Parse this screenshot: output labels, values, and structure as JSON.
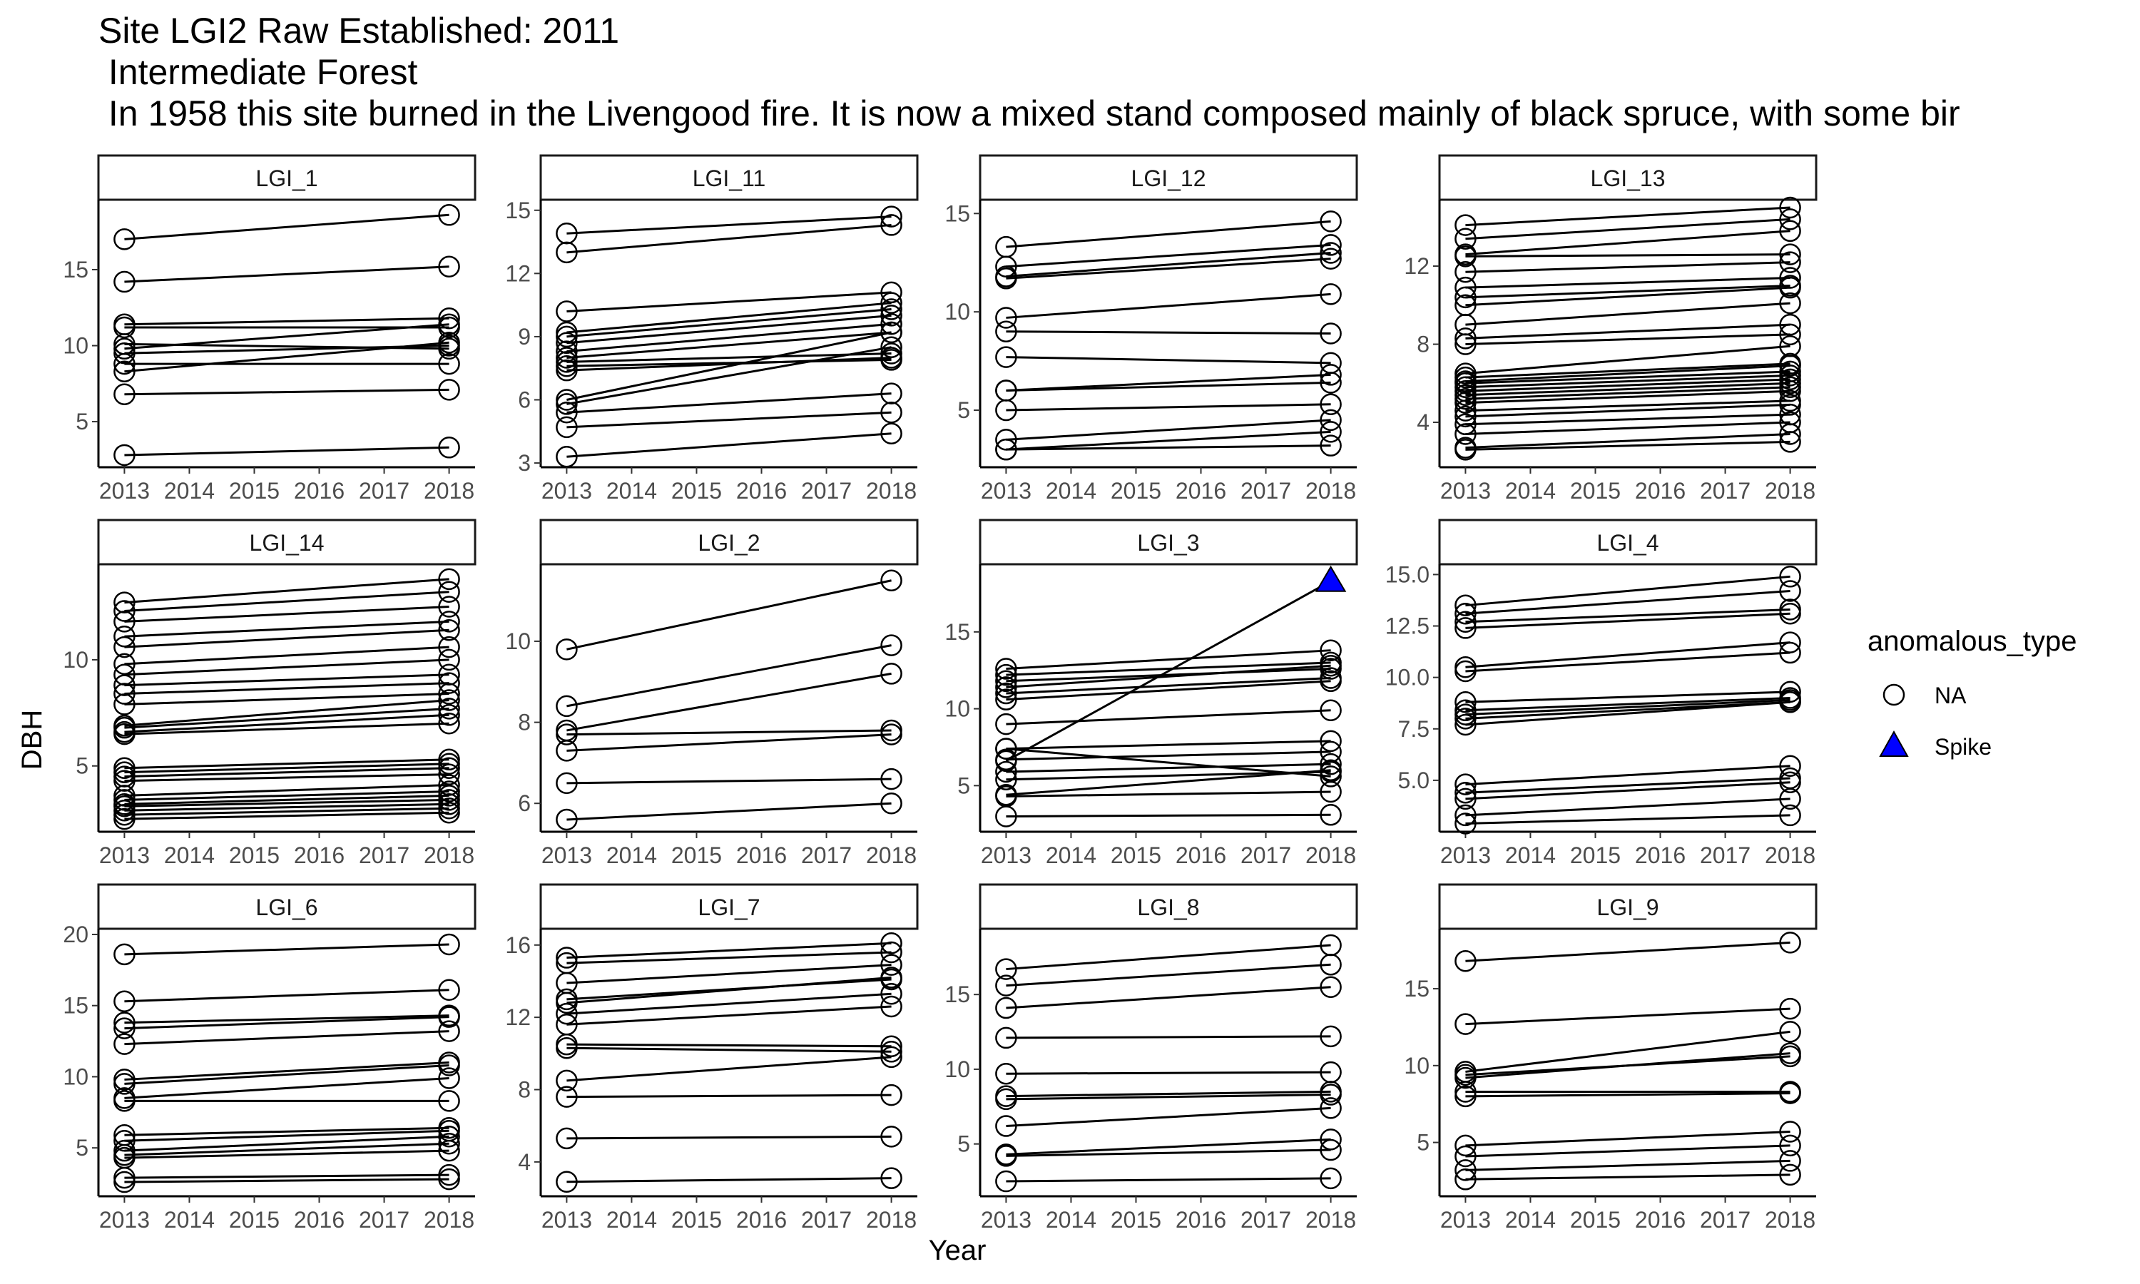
{
  "chart_data": {
    "type": "line",
    "title": "Site LGI2 Raw Established: 2011",
    "subtitle_lines": [
      " Intermediate Forest",
      " In 1958 this site burned in the Livengood fire. It is now a mixed stand composed mainly of black spruce, with some bir"
    ],
    "xlabel": "Year",
    "ylabel": "DBH",
    "x_ticks": [
      2013,
      2014,
      2015,
      2016,
      2017,
      2018
    ],
    "xlim": [
      2012.6,
      2018.4
    ],
    "legend": {
      "title": "anomalous_type",
      "position": "right",
      "entries": [
        {
          "label": "NA",
          "shape": "open-circle"
        },
        {
          "label": "Spike",
          "shape": "triangle",
          "color": "#0000ff"
        }
      ]
    },
    "colors": {
      "line": "#000000",
      "spike": "#0000ff"
    },
    "panels": [
      {
        "name": "LGI_1",
        "ylim": [
          2.0,
          19.6
        ],
        "yticks": [
          5,
          10,
          15
        ],
        "series": [
          [
            17.0,
            18.6
          ],
          [
            14.2,
            15.2
          ],
          [
            11.4,
            11.8
          ],
          [
            11.2,
            11.2
          ],
          [
            10.1,
            9.8
          ],
          [
            9.8,
            11.4
          ],
          [
            9.5,
            10.0
          ],
          [
            8.8,
            8.8
          ],
          [
            8.3,
            10.2
          ],
          [
            6.8,
            7.1
          ],
          [
            2.8,
            3.3
          ]
        ],
        "spikes": []
      },
      {
        "name": "LGI_11",
        "ylim": [
          2.8,
          15.5
        ],
        "yticks": [
          3,
          6,
          9,
          12,
          15
        ],
        "series": [
          [
            13.9,
            14.7
          ],
          [
            13.0,
            14.3
          ],
          [
            10.2,
            11.1
          ],
          [
            9.2,
            10.6
          ],
          [
            9.0,
            10.3
          ],
          [
            8.7,
            10.0
          ],
          [
            8.3,
            9.6
          ],
          [
            8.0,
            9.2
          ],
          [
            7.8,
            8.2
          ],
          [
            7.6,
            7.9
          ],
          [
            7.4,
            8.0
          ],
          [
            6.0,
            9.2
          ],
          [
            5.8,
            8.5
          ],
          [
            5.4,
            6.3
          ],
          [
            4.7,
            5.4
          ],
          [
            3.3,
            4.4
          ]
        ],
        "spikes": []
      },
      {
        "name": "LGI_12",
        "ylim": [
          2.1,
          15.7
        ],
        "yticks": [
          5,
          10,
          15
        ],
        "series": [
          [
            13.3,
            14.6
          ],
          [
            12.3,
            13.4
          ],
          [
            11.8,
            13.0
          ],
          [
            11.7,
            12.7
          ],
          [
            9.7,
            10.9
          ],
          [
            9.0,
            8.9
          ],
          [
            7.7,
            7.4
          ],
          [
            6.0,
            6.8
          ],
          [
            6.0,
            6.4
          ],
          [
            5.0,
            5.3
          ],
          [
            3.5,
            4.5
          ],
          [
            3.0,
            3.2
          ],
          [
            3.0,
            3.9
          ]
        ],
        "spikes": []
      },
      {
        "name": "LGI_13",
        "ylim": [
          1.7,
          15.4
        ],
        "yticks": [
          4,
          8,
          12
        ],
        "series": [
          [
            14.1,
            15.0
          ],
          [
            13.4,
            14.4
          ],
          [
            12.6,
            13.8
          ],
          [
            12.5,
            12.6
          ],
          [
            11.7,
            12.2
          ],
          [
            10.9,
            11.4
          ],
          [
            10.4,
            11.0
          ],
          [
            10.0,
            10.9
          ],
          [
            9.0,
            10.1
          ],
          [
            8.3,
            9.0
          ],
          [
            8.0,
            8.5
          ],
          [
            6.5,
            7.9
          ],
          [
            6.3,
            7.0
          ],
          [
            6.1,
            6.9
          ],
          [
            6.0,
            6.6
          ],
          [
            5.8,
            6.4
          ],
          [
            5.6,
            6.2
          ],
          [
            5.4,
            6.0
          ],
          [
            5.2,
            5.8
          ],
          [
            5.0,
            5.6
          ],
          [
            4.6,
            5.1
          ],
          [
            4.3,
            4.9
          ],
          [
            3.9,
            4.4
          ],
          [
            3.4,
            4.0
          ],
          [
            2.7,
            3.4
          ],
          [
            2.6,
            3.0
          ]
        ],
        "spikes": []
      },
      {
        "name": "LGI_14",
        "ylim": [
          1.9,
          14.5
        ],
        "yticks": [
          5,
          10
        ],
        "series": [
          [
            12.7,
            13.8
          ],
          [
            12.3,
            13.2
          ],
          [
            11.8,
            12.5
          ],
          [
            11.1,
            11.8
          ],
          [
            10.6,
            11.4
          ],
          [
            9.8,
            10.6
          ],
          [
            9.3,
            10.0
          ],
          [
            8.8,
            9.3
          ],
          [
            8.4,
            8.9
          ],
          [
            7.9,
            8.4
          ],
          [
            6.9,
            8.1
          ],
          [
            6.8,
            7.7
          ],
          [
            6.6,
            7.4
          ],
          [
            6.5,
            7.0
          ],
          [
            4.9,
            5.3
          ],
          [
            4.7,
            5.1
          ],
          [
            4.5,
            4.9
          ],
          [
            4.3,
            4.6
          ],
          [
            3.6,
            4.1
          ],
          [
            3.4,
            3.8
          ],
          [
            3.2,
            3.6
          ],
          [
            3.1,
            3.4
          ],
          [
            2.9,
            3.2
          ],
          [
            2.7,
            3.0
          ],
          [
            2.5,
            2.8
          ]
        ],
        "spikes": []
      },
      {
        "name": "LGI_2",
        "ylim": [
          5.3,
          11.9
        ],
        "yticks": [
          6,
          8,
          10
        ],
        "series": [
          [
            9.8,
            11.5
          ],
          [
            8.4,
            9.9
          ],
          [
            7.8,
            9.2
          ],
          [
            7.7,
            7.8
          ],
          [
            7.3,
            7.7
          ],
          [
            6.5,
            6.6
          ],
          [
            5.6,
            6.0
          ]
        ],
        "spikes": []
      },
      {
        "name": "LGI_3",
        "ylim": [
          2.0,
          19.4
        ],
        "yticks": [
          5,
          10,
          15
        ],
        "series": [
          [
            12.6,
            13.8
          ],
          [
            12.2,
            13.0
          ],
          [
            11.8,
            12.6
          ],
          [
            11.4,
            12.8
          ],
          [
            11.0,
            12.0
          ],
          [
            10.6,
            11.8
          ],
          [
            9.0,
            9.9
          ],
          [
            7.4,
            5.6
          ],
          [
            7.4,
            7.9
          ],
          [
            6.7,
            7.2
          ],
          [
            5.9,
            6.4
          ],
          [
            5.4,
            5.9
          ],
          [
            4.4,
            6.0
          ],
          [
            4.3,
            4.6
          ],
          [
            3.0,
            3.1
          ]
        ],
        "spikes": [
          {
            "x": [
              2013,
              2018
            ],
            "y": [
              6.6,
              18.3
            ]
          }
        ]
      },
      {
        "name": "LGI_4",
        "ylim": [
          2.5,
          15.5
        ],
        "yticks": [
          5.0,
          7.5,
          10.0,
          12.5,
          15.0
        ],
        "tick_labels": [
          "5.0",
          "7.5",
          "10.0",
          "12.5",
          "15.0"
        ],
        "series": [
          [
            13.5,
            14.9
          ],
          [
            13.1,
            14.2
          ],
          [
            12.7,
            13.3
          ],
          [
            12.4,
            13.1
          ],
          [
            10.5,
            11.7
          ],
          [
            10.3,
            11.2
          ],
          [
            8.8,
            9.3
          ],
          [
            8.4,
            9.0
          ],
          [
            8.2,
            8.9
          ],
          [
            8.0,
            8.8
          ],
          [
            7.7,
            8.8
          ],
          [
            4.8,
            5.7
          ],
          [
            4.4,
            5.1
          ],
          [
            4.1,
            4.9
          ],
          [
            3.3,
            4.1
          ],
          [
            2.9,
            3.3
          ]
        ],
        "spikes": []
      },
      {
        "name": "LGI_6",
        "ylim": [
          1.6,
          20.4
        ],
        "yticks": [
          5,
          10,
          15,
          20
        ],
        "series": [
          [
            18.6,
            19.3
          ],
          [
            15.3,
            16.1
          ],
          [
            13.8,
            14.3
          ],
          [
            13.4,
            14.2
          ],
          [
            12.3,
            13.2
          ],
          [
            9.8,
            11.0
          ],
          [
            9.5,
            10.8
          ],
          [
            8.5,
            9.9
          ],
          [
            8.3,
            8.3
          ],
          [
            5.9,
            6.4
          ],
          [
            5.5,
            6.2
          ],
          [
            4.8,
            5.8
          ],
          [
            4.5,
            5.3
          ],
          [
            4.3,
            4.8
          ],
          [
            2.9,
            3.1
          ],
          [
            2.6,
            2.8
          ]
        ],
        "spikes": []
      },
      {
        "name": "LGI_7",
        "ylim": [
          2.1,
          16.9
        ],
        "yticks": [
          4,
          8,
          12,
          16
        ],
        "series": [
          [
            15.3,
            16.1
          ],
          [
            15.0,
            15.6
          ],
          [
            13.9,
            14.9
          ],
          [
            13.0,
            14.1
          ],
          [
            12.8,
            14.2
          ],
          [
            12.2,
            13.3
          ],
          [
            11.6,
            12.6
          ],
          [
            10.5,
            10.4
          ],
          [
            10.3,
            10.1
          ],
          [
            8.5,
            9.8
          ],
          [
            7.6,
            7.7
          ],
          [
            5.3,
            5.4
          ],
          [
            2.9,
            3.1
          ]
        ],
        "spikes": []
      },
      {
        "name": "LGI_8",
        "ylim": [
          1.5,
          19.4
        ],
        "yticks": [
          5,
          10,
          15
        ],
        "series": [
          [
            16.7,
            18.3
          ],
          [
            15.6,
            17.0
          ],
          [
            14.1,
            15.5
          ],
          [
            12.1,
            12.2
          ],
          [
            9.7,
            9.8
          ],
          [
            8.2,
            8.5
          ],
          [
            8.0,
            8.3
          ],
          [
            6.2,
            7.4
          ],
          [
            4.3,
            5.3
          ],
          [
            4.2,
            4.6
          ],
          [
            2.5,
            2.7
          ]
        ],
        "spikes": []
      },
      {
        "name": "LGI_9",
        "ylim": [
          1.5,
          18.9
        ],
        "yticks": [
          5,
          10,
          15
        ],
        "series": [
          [
            16.8,
            18.0
          ],
          [
            12.7,
            13.7
          ],
          [
            9.6,
            12.2
          ],
          [
            9.4,
            10.6
          ],
          [
            9.2,
            10.8
          ],
          [
            8.3,
            8.3
          ],
          [
            8.0,
            8.2
          ],
          [
            4.8,
            5.7
          ],
          [
            4.1,
            4.8
          ],
          [
            3.2,
            3.8
          ],
          [
            2.6,
            2.9
          ]
        ],
        "spikes": []
      }
    ]
  }
}
